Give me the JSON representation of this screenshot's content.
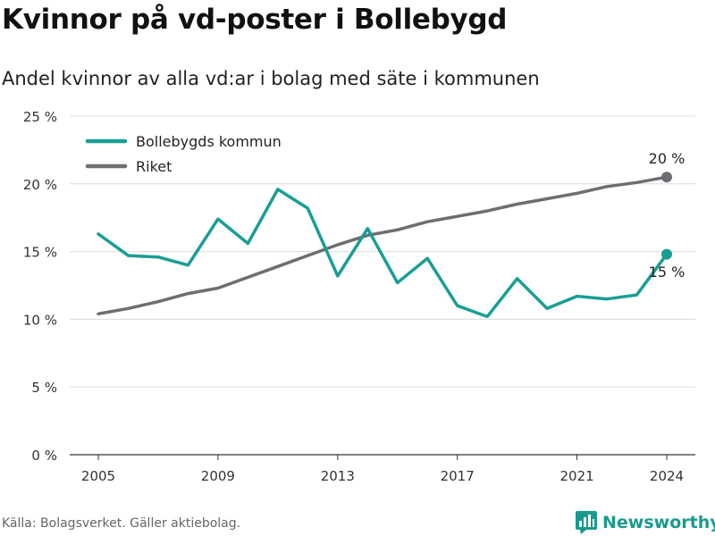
{
  "title": "Kvinnor på vd-poster i Bollebygd",
  "subtitle": "Andel kvinnor av alla vd:ar i bolag med säte i kommunen",
  "source": "Källa: Bolagsverket. Gäller aktiebolag.",
  "brand": {
    "name": "Newsworthy",
    "icon": "bar-chart-logo-icon",
    "color": "#1a9a8e"
  },
  "chart_data": {
    "type": "line",
    "x": [
      2005,
      2006,
      2007,
      2008,
      2009,
      2010,
      2011,
      2012,
      2013,
      2014,
      2015,
      2016,
      2017,
      2018,
      2019,
      2020,
      2021,
      2022,
      2023,
      2024
    ],
    "x_ticks": [
      2005,
      2009,
      2013,
      2017,
      2021,
      2024
    ],
    "y_ticks": [
      0,
      5,
      10,
      15,
      20,
      25
    ],
    "y_tick_labels": [
      "0 %",
      "5 %",
      "10 %",
      "15 %",
      "20 %",
      "25 %"
    ],
    "ylim": [
      0,
      25
    ],
    "grid": true,
    "legend_position": "top-left",
    "series": [
      {
        "name": "Bollebygds kommun",
        "color": "#1a9e95",
        "values": [
          16.3,
          14.7,
          14.6,
          14.0,
          17.4,
          15.6,
          19.6,
          18.2,
          13.2,
          16.7,
          12.7,
          14.5,
          11.0,
          10.2,
          13.0,
          10.8,
          11.7,
          11.5,
          11.8,
          14.8
        ],
        "end_label": "15 %"
      },
      {
        "name": "Riket",
        "color": "#6e6d72",
        "values": [
          10.4,
          10.8,
          11.3,
          11.9,
          12.3,
          13.1,
          13.9,
          14.7,
          15.5,
          16.2,
          16.6,
          17.2,
          17.6,
          18.0,
          18.5,
          18.9,
          19.3,
          19.8,
          20.1,
          20.5
        ],
        "end_label": "20 %"
      }
    ]
  }
}
